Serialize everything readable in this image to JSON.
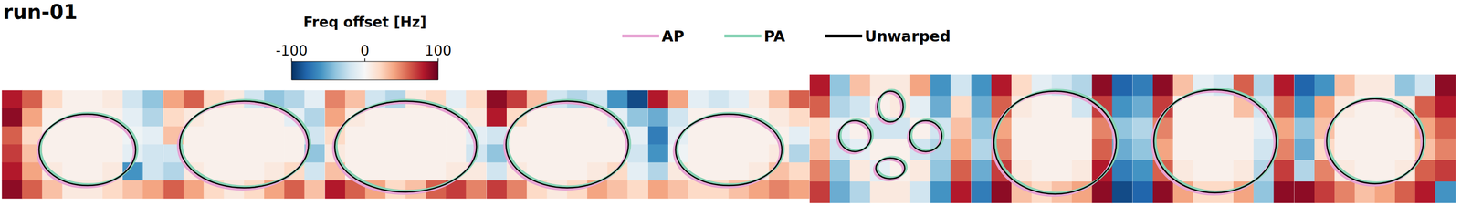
{
  "chart_data": {
    "type": "heatmap",
    "title": "run-01",
    "colorbar_label": "Freq offset [Hz]",
    "colorbar_range": [
      -100,
      100
    ],
    "colorbar_ticks": [
      -100,
      0,
      100
    ],
    "tick_labels": false,
    "legend": "top",
    "series": [
      {
        "name": "AP",
        "color": "#e7a3d3"
      },
      {
        "name": "PA",
        "color": "#86d2b4"
      },
      {
        "name": "Unwarped",
        "color": "#000000"
      }
    ],
    "panels": [
      {
        "cells": [
          [
            80,
            60,
            20,
            5,
            5,
            10,
            -20,
            -40
          ],
          [
            90,
            40,
            5,
            5,
            5,
            5,
            -10,
            -30
          ],
          [
            60,
            20,
            5,
            5,
            5,
            5,
            -5,
            -10
          ],
          [
            70,
            30,
            5,
            5,
            5,
            5,
            -10,
            -20
          ],
          [
            80,
            40,
            10,
            5,
            5,
            10,
            -60,
            -20
          ],
          [
            90,
            60,
            30,
            10,
            10,
            20,
            30,
            40
          ]
        ]
      },
      {
        "cells": [
          [
            40,
            60,
            20,
            10,
            -20,
            -40,
            -30,
            -10
          ],
          [
            20,
            10,
            5,
            5,
            5,
            5,
            -10,
            -30
          ],
          [
            30,
            5,
            5,
            5,
            5,
            5,
            5,
            -20
          ],
          [
            -20,
            5,
            5,
            5,
            5,
            5,
            5,
            -40
          ],
          [
            -30,
            10,
            5,
            5,
            5,
            10,
            20,
            -20
          ],
          [
            60,
            40,
            20,
            10,
            20,
            40,
            60,
            30
          ]
        ]
      },
      {
        "cells": [
          [
            50,
            30,
            -20,
            -30,
            10,
            20,
            -10,
            20
          ],
          [
            40,
            10,
            5,
            5,
            5,
            5,
            5,
            10
          ],
          [
            20,
            5,
            5,
            5,
            5,
            5,
            5,
            -10
          ],
          [
            10,
            5,
            5,
            5,
            5,
            5,
            5,
            -20
          ],
          [
            30,
            5,
            5,
            5,
            5,
            5,
            10,
            10
          ],
          [
            80,
            60,
            40,
            20,
            30,
            60,
            70,
            50
          ]
        ]
      },
      {
        "cells": [
          [
            90,
            70,
            30,
            -20,
            -30,
            -20,
            -60,
            -90
          ],
          [
            80,
            20,
            5,
            5,
            5,
            5,
            -10,
            -40
          ],
          [
            -20,
            5,
            5,
            5,
            5,
            5,
            5,
            -10
          ],
          [
            -40,
            5,
            5,
            5,
            5,
            5,
            5,
            -20
          ],
          [
            -20,
            10,
            5,
            5,
            5,
            10,
            20,
            -10
          ],
          [
            70,
            50,
            20,
            10,
            20,
            40,
            30,
            20
          ]
        ]
      },
      {
        "cells": [
          [
            80,
            40,
            -10,
            -20,
            -10,
            10,
            30,
            60
          ],
          [
            -50,
            -20,
            5,
            5,
            5,
            5,
            10,
            20
          ],
          [
            -70,
            -10,
            5,
            5,
            5,
            5,
            5,
            -10
          ],
          [
            -60,
            -5,
            5,
            5,
            5,
            5,
            10,
            -30
          ],
          [
            -30,
            10,
            5,
            5,
            5,
            10,
            30,
            20
          ],
          [
            40,
            30,
            20,
            20,
            30,
            40,
            50,
            40
          ]
        ]
      },
      {
        "cells": [
          [
            80,
            -40,
            30,
            10,
            10,
            40,
            -60,
            -20
          ],
          [
            60,
            -30,
            -20,
            5,
            10,
            -10,
            -50,
            20
          ],
          [
            20,
            -10,
            5,
            -20,
            -20,
            5,
            -20,
            30
          ],
          [
            30,
            -20,
            -10,
            5,
            5,
            -20,
            -30,
            40
          ],
          [
            50,
            -40,
            10,
            -10,
            5,
            10,
            -40,
            60
          ],
          [
            70,
            -50,
            -30,
            10,
            10,
            -20,
            -60,
            80
          ]
        ]
      },
      {
        "cells": [
          [
            -60,
            80,
            20,
            -10,
            -20,
            -30,
            90,
            -80
          ],
          [
            -50,
            60,
            10,
            5,
            5,
            -20,
            70,
            -60
          ],
          [
            -40,
            40,
            5,
            5,
            5,
            5,
            50,
            -40
          ],
          [
            -30,
            50,
            5,
            5,
            5,
            5,
            60,
            -50
          ],
          [
            -50,
            70,
            10,
            5,
            5,
            10,
            80,
            -70
          ],
          [
            -70,
            90,
            30,
            20,
            30,
            40,
            90,
            -90
          ]
        ]
      },
      {
        "cells": [
          [
            -70,
            90,
            30,
            -10,
            -20,
            60,
            -30,
            80
          ],
          [
            -50,
            70,
            5,
            5,
            5,
            30,
            -20,
            60
          ],
          [
            -30,
            50,
            5,
            5,
            5,
            5,
            -10,
            40
          ],
          [
            -40,
            40,
            5,
            5,
            5,
            5,
            -20,
            50
          ],
          [
            -60,
            60,
            10,
            5,
            5,
            10,
            -30,
            70
          ],
          [
            -80,
            90,
            40,
            20,
            20,
            40,
            -40,
            90
          ]
        ]
      },
      {
        "cells": [
          [
            -80,
            -60,
            30,
            10,
            10,
            -40,
            -20,
            90
          ],
          [
            -60,
            40,
            10,
            5,
            5,
            10,
            60,
            80
          ],
          [
            -40,
            30,
            5,
            5,
            5,
            5,
            40,
            60
          ],
          [
            -50,
            20,
            5,
            5,
            5,
            5,
            30,
            50
          ],
          [
            -30,
            50,
            10,
            5,
            5,
            10,
            60,
            70
          ],
          [
            90,
            70,
            50,
            30,
            40,
            60,
            80,
            -60
          ]
        ]
      }
    ]
  }
}
